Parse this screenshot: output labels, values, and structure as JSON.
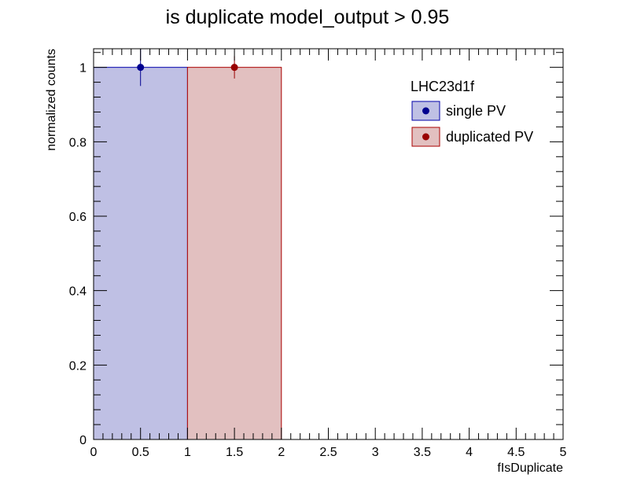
{
  "chart_data": {
    "type": "bar",
    "title": "is duplicate  model_output > 0.95",
    "xlabel": "fIsDuplicate",
    "ylabel": "normalized counts",
    "xlim": [
      0,
      5
    ],
    "ylim": [
      0,
      1.05
    ],
    "x_ticks": [
      "0",
      "0.5",
      "1",
      "1.5",
      "2",
      "2.5",
      "3",
      "3.5",
      "4",
      "4.5",
      "5"
    ],
    "y_ticks": [
      "0",
      "0.2",
      "0.4",
      "0.6",
      "0.8",
      "1"
    ],
    "grid": false,
    "legend": {
      "title": "LHC23d1f",
      "placement": "top-right"
    },
    "series": [
      {
        "name": "single PV",
        "bins": [
          [
            0,
            1
          ]
        ],
        "values": [
          1.0
        ],
        "errors": [
          0.05
        ],
        "fill_color": "#bfc0e4",
        "line_color": "#0000aa",
        "marker_color": "#00008f"
      },
      {
        "name": "duplicated PV",
        "bins": [
          [
            1,
            2
          ]
        ],
        "values": [
          1.0
        ],
        "errors": [
          0.03
        ],
        "fill_color": "#e2c0c0",
        "line_color": "#aa0000",
        "marker_color": "#990000"
      }
    ]
  }
}
